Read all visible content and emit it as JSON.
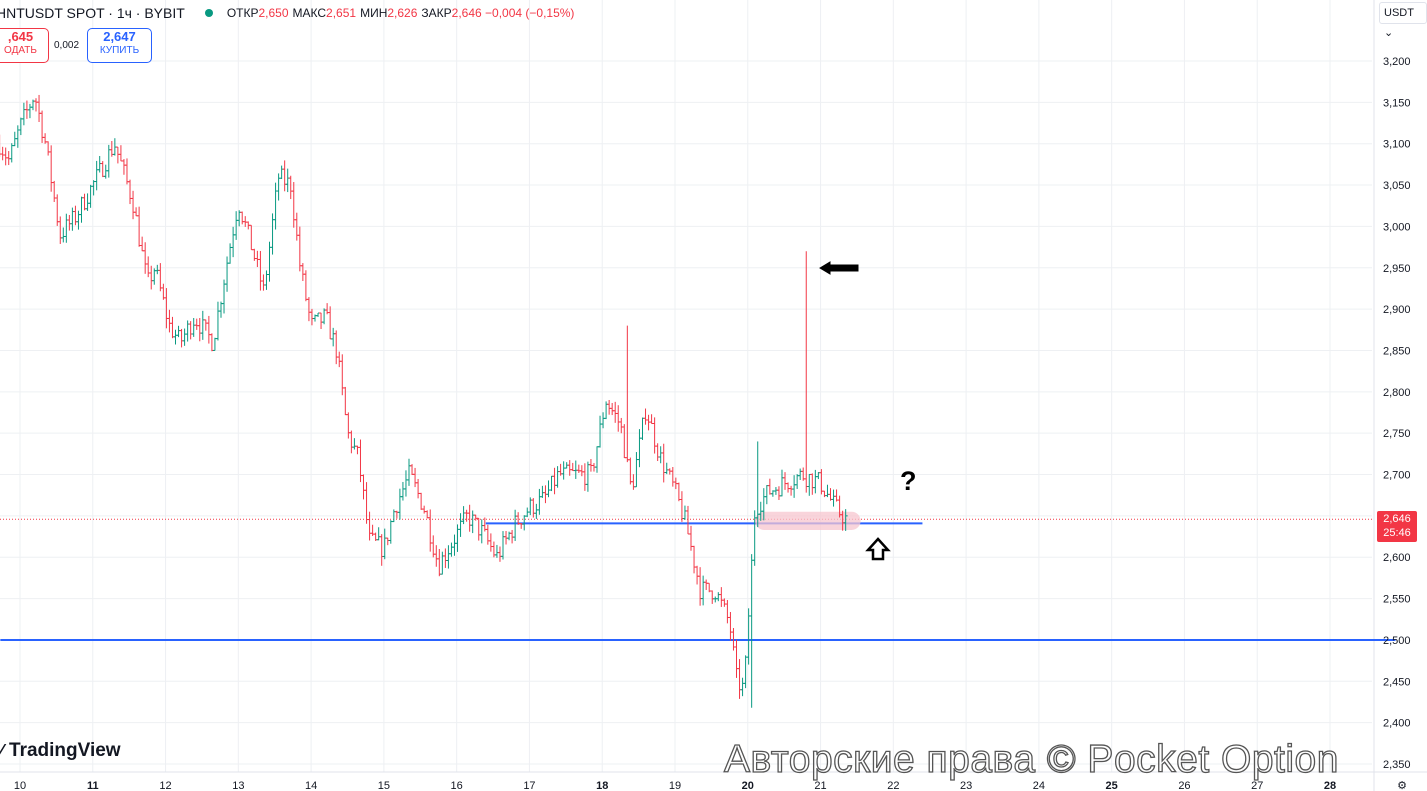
{
  "header": {
    "symbol_line": "HNTUSDT SPOT · 1ч · BYBIT",
    "open_label": "ОТКР",
    "open_value": "2,650",
    "high_label": "МАКС",
    "high_value": "2,651",
    "low_label": "МИН",
    "low_value": "2,626",
    "close_label": "ЗАКР",
    "close_value": "2,646 −0,004 (−0,15%)"
  },
  "trade": {
    "sell_price": ",645",
    "sell_label": "ОДАТЬ",
    "spread": "0,002",
    "buy_price": "2,647",
    "buy_label": "КУПИТЬ"
  },
  "currency_menu": "USDT ⌄",
  "price_tag": {
    "price": "2,646",
    "countdown": "25:46"
  },
  "logo_text": "TradingView",
  "watermark": "Авторские права © Pocket Option",
  "annotation_question": "?",
  "colors": {
    "up": "#089981",
    "down": "#f23645",
    "hline": "#2962ff",
    "highlight": "#f7c5cf",
    "grid": "#eef0f3",
    "axis_text": "#131722"
  },
  "chart_data": {
    "type": "ohlc",
    "title": "",
    "xlabel": "",
    "ylabel": "",
    "ylim": [
      2.35,
      3.2
    ],
    "y_ticks": [
      "3,200",
      "3,150",
      "3,100",
      "3,050",
      "3,000",
      "2,950",
      "2,900",
      "2,850",
      "2,800",
      "2,750",
      "2,700",
      "2,650",
      "2,600",
      "2,550",
      "2,500",
      "2,450",
      "2,400",
      "2,350"
    ],
    "y_tick_values": [
      3.2,
      3.15,
      3.1,
      3.05,
      3.0,
      2.95,
      2.9,
      2.85,
      2.8,
      2.75,
      2.7,
      2.65,
      2.6,
      2.55,
      2.5,
      2.45,
      2.4,
      2.35
    ],
    "x_ticks": [
      "10",
      "11",
      "12",
      "13",
      "14",
      "15",
      "16",
      "17",
      "18",
      "19",
      "20",
      "21",
      "22",
      "23",
      "24",
      "25",
      "26",
      "27",
      "28"
    ],
    "x_tick_bold": [
      false,
      true,
      false,
      false,
      false,
      false,
      false,
      false,
      true,
      false,
      true,
      false,
      false,
      false,
      false,
      true,
      false,
      false,
      true
    ],
    "x_tick_days": [
      10,
      11,
      12,
      13,
      14,
      15,
      16,
      17,
      18,
      19,
      20,
      21,
      22,
      23,
      24,
      25,
      26,
      27,
      28
    ],
    "x_range_days": [
      9.73,
      28.9
    ],
    "waypoints": [
      [
        9.72,
        3.1
      ],
      [
        9.85,
        3.08
      ],
      [
        10.0,
        3.12
      ],
      [
        10.2,
        3.16
      ],
      [
        10.35,
        3.1
      ],
      [
        10.55,
        2.99
      ],
      [
        10.75,
        3.01
      ],
      [
        11.0,
        3.05
      ],
      [
        11.3,
        3.1
      ],
      [
        11.55,
        3.03
      ],
      [
        11.75,
        2.93
      ],
      [
        11.85,
        2.95
      ],
      [
        12.05,
        2.88
      ],
      [
        12.2,
        2.86
      ],
      [
        12.4,
        2.89
      ],
      [
        12.65,
        2.86
      ],
      [
        12.85,
        2.96
      ],
      [
        13.0,
        3.03
      ],
      [
        13.2,
        2.97
      ],
      [
        13.35,
        2.92
      ],
      [
        13.55,
        3.06
      ],
      [
        13.72,
        3.05
      ],
      [
        13.85,
        2.95
      ],
      [
        14.0,
        2.88
      ],
      [
        14.2,
        2.89
      ],
      [
        14.35,
        2.85
      ],
      [
        14.5,
        2.75
      ],
      [
        14.65,
        2.72
      ],
      [
        14.8,
        2.62
      ],
      [
        15.0,
        2.61
      ],
      [
        15.15,
        2.66
      ],
      [
        15.35,
        2.7
      ],
      [
        15.55,
        2.66
      ],
      [
        15.75,
        2.59
      ],
      [
        15.95,
        2.62
      ],
      [
        16.15,
        2.65
      ],
      [
        16.35,
        2.63
      ],
      [
        16.55,
        2.6
      ],
      [
        16.8,
        2.64
      ],
      [
        17.0,
        2.66
      ],
      [
        17.2,
        2.67
      ],
      [
        17.4,
        2.7
      ],
      [
        17.65,
        2.7
      ],
      [
        17.85,
        2.7
      ],
      [
        18.05,
        2.79
      ],
      [
        18.25,
        2.76
      ],
      [
        18.4,
        2.68
      ],
      [
        18.6,
        2.78
      ],
      [
        18.8,
        2.72
      ],
      [
        19.0,
        2.68
      ],
      [
        19.15,
        2.64
      ],
      [
        19.35,
        2.56
      ],
      [
        19.55,
        2.56
      ],
      [
        19.75,
        2.52
      ],
      [
        19.85,
        2.45
      ],
      [
        19.95,
        2.44
      ],
      [
        20.1,
        2.66
      ],
      [
        20.3,
        2.68
      ],
      [
        20.5,
        2.69
      ],
      [
        20.75,
        2.7
      ],
      [
        21.0,
        2.69
      ],
      [
        21.2,
        2.66
      ],
      [
        21.35,
        2.646
      ]
    ],
    "spikes": [
      {
        "day": 20.05,
        "low": 2.418
      },
      {
        "day": 20.81,
        "high": 2.97
      },
      {
        "day": 18.35,
        "high": 2.88
      },
      {
        "day": 20.15,
        "high": 2.74
      }
    ],
    "horizontal_lines": [
      {
        "y": 2.5,
        "day_from": 9.73,
        "day_to": 28.9
      },
      {
        "y": 2.641,
        "day_from": 16.4,
        "day_to": 22.4
      }
    ],
    "last_price": 2.646,
    "highlight_zone": {
      "day_from": 20.1,
      "day_to": 21.55,
      "y_low": 2.633,
      "y_high": 2.655
    }
  }
}
